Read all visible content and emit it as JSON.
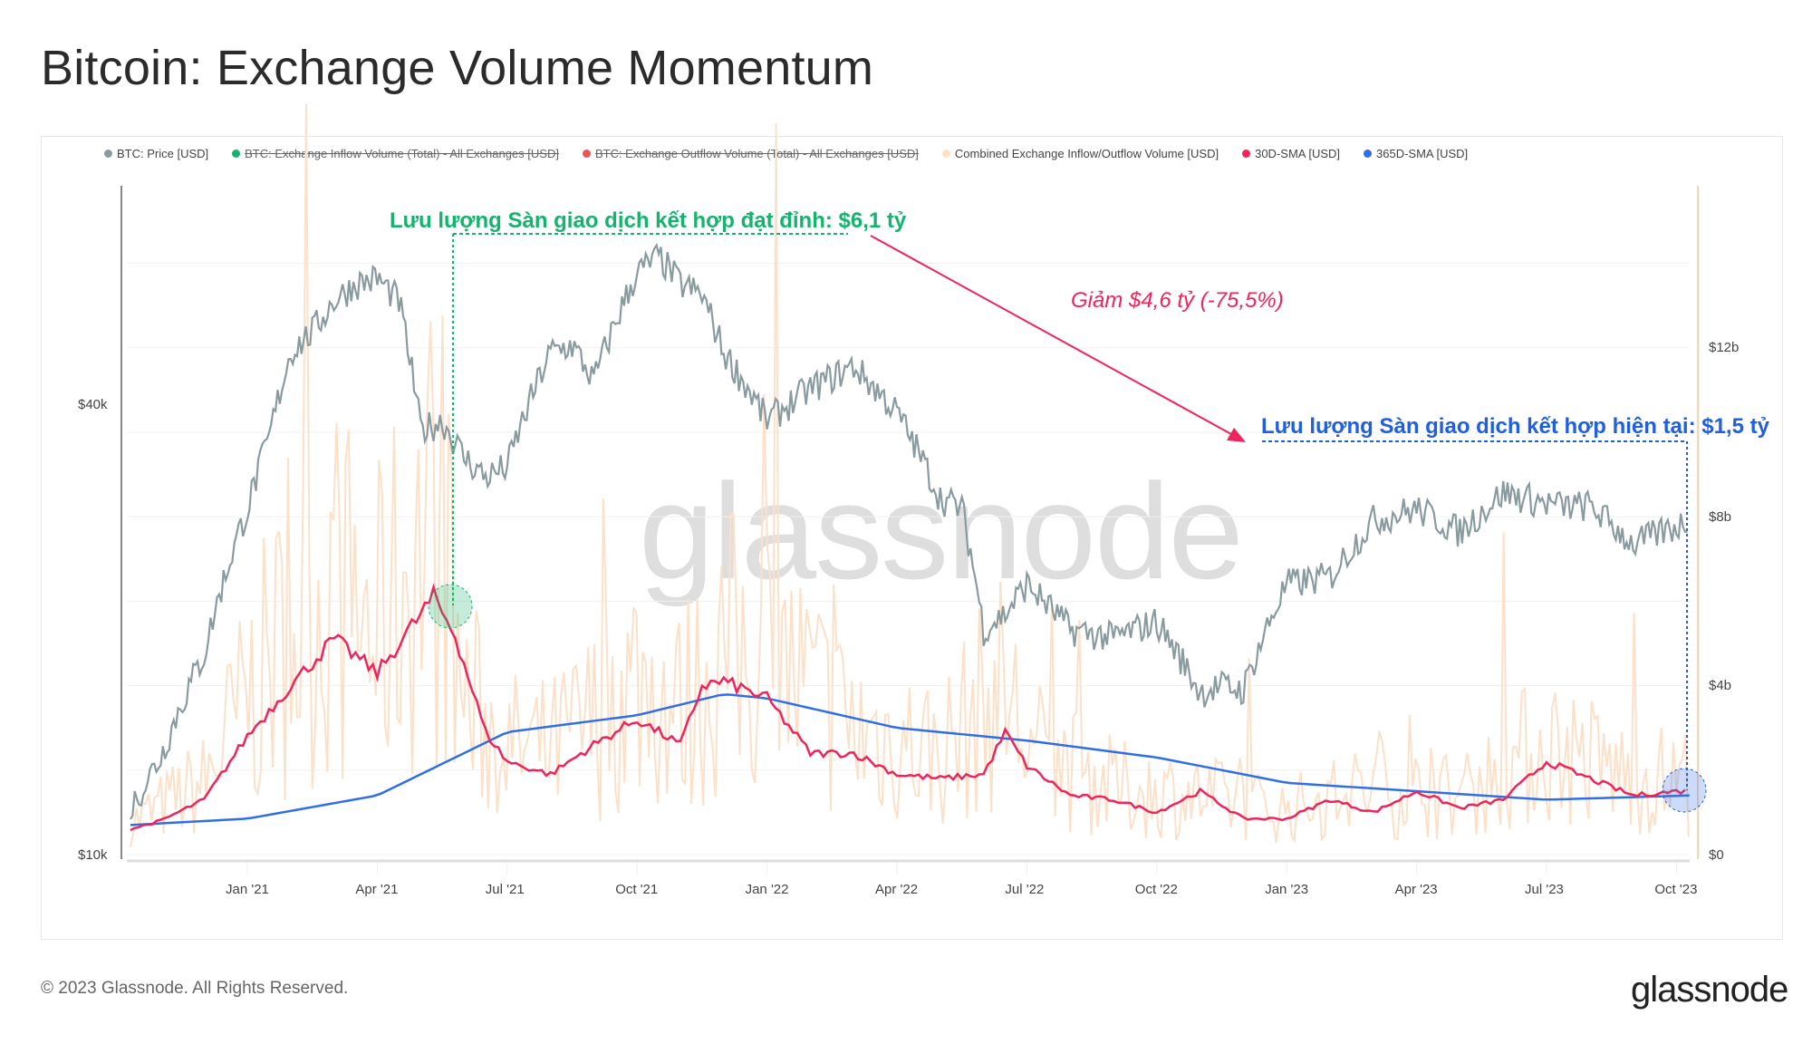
{
  "title": "Bitcoin: Exchange Volume Momentum",
  "footer": "© 2023 Glassnode. All Rights Reserved.",
  "logo": "glassnode",
  "watermark": "glassnode",
  "legend": [
    {
      "label": "BTC: Price [USD]",
      "color": "#8a9ba0",
      "struck": false
    },
    {
      "label": "BTC: Exchange Inflow Volume (Total) - All Exchanges [USD]",
      "color": "#16b36e",
      "struck": true
    },
    {
      "label": "BTC: Exchange Outflow Volume (Total) - All Exchanges [USD]",
      "color": "#ef5350",
      "struck": true
    },
    {
      "label": "Combined Exchange Inflow/Outflow Volume [USD]",
      "color": "#fde0c8",
      "struck": false
    },
    {
      "label": "30D-SMA [USD]",
      "color": "#f0245a",
      "struck": false
    },
    {
      "label": "365D-SMA [USD]",
      "color": "#2f6fe6",
      "struck": false
    }
  ],
  "annotations": {
    "peak": "Lưu lượng Sàn giao dịch kết hợp đạt đỉnh: $6,1 tỷ",
    "drop": "Giảm $4,6 tỷ (-75,5%)",
    "current": "Lưu lượng Sàn giao dịch kết hợp hiện tại: $1,5 tỷ"
  },
  "chart_data": {
    "type": "line",
    "title": "Bitcoin: Exchange Volume Momentum",
    "x_ticks": [
      "Jan '21",
      "Apr '21",
      "Jul '21",
      "Oct '21",
      "Jan '22",
      "Apr '22",
      "Jul '22",
      "Oct '22",
      "Jan '23",
      "Apr '23",
      "Jul '23",
      "Oct '23"
    ],
    "y_left": {
      "scale": "log",
      "ticks": [
        "$10k",
        "$40k"
      ],
      "tick_values": [
        10000,
        40000
      ],
      "range": [
        10000,
        70000
      ]
    },
    "y_right": {
      "scale": "linear",
      "ticks": [
        "$0",
        "$4b",
        "$8b",
        "$12b"
      ],
      "tick_values": [
        0,
        4,
        8,
        12
      ],
      "range": [
        0,
        16
      ]
    },
    "x_unit": "months since Jan 2021",
    "series": [
      {
        "name": "BTC: Price [USD]",
        "axis": "left",
        "color": "#8a9ba0",
        "t": [
          -2.7,
          -2,
          -1,
          0,
          0.5,
          1,
          1.5,
          2,
          2.5,
          3,
          3.5,
          4,
          4.5,
          5,
          5.5,
          6,
          6.5,
          7,
          7.5,
          8,
          9,
          9.5,
          10,
          10.5,
          11,
          12,
          13,
          14,
          15,
          16,
          16.5,
          17,
          17.5,
          18,
          19,
          20,
          21,
          22,
          22.5,
          23,
          24,
          25,
          26,
          26.5,
          27,
          28,
          29,
          30,
          30.5,
          31,
          32,
          33,
          33.3
        ],
        "values": [
          11500,
          13500,
          18500,
          29000,
          36000,
          47000,
          50000,
          55000,
          58000,
          59000,
          55000,
          37000,
          38000,
          34000,
          32000,
          33000,
          40000,
          47000,
          48000,
          43000,
          60000,
          63000,
          58000,
          56000,
          47000,
          38000,
          42000,
          45000,
          39000,
          30000,
          29000,
          20000,
          21000,
          23000,
          20000,
          19500,
          20500,
          16500,
          16800,
          16600,
          23000,
          23500,
          28000,
          28500,
          29000,
          27000,
          30500,
          29500,
          29200,
          29300,
          26000,
          27500,
          28000
        ]
      },
      {
        "name": "30D-SMA [USD]",
        "axis": "right",
        "unit": "billion USD",
        "color": "#f0245a",
        "t": [
          -2.7,
          -2,
          -1,
          0,
          1,
          2,
          3,
          4.3,
          4.8,
          5.5,
          6,
          7,
          8,
          9,
          10,
          10.5,
          11,
          12,
          13,
          14,
          15,
          16,
          17,
          17.5,
          18,
          19,
          20,
          21,
          22,
          23,
          24,
          25,
          26,
          27,
          28,
          29,
          30,
          31,
          32,
          33,
          33.3
        ],
        "values": [
          0.6,
          0.8,
          1.3,
          2.8,
          4.0,
          5.1,
          4.3,
          6.1,
          5.2,
          2.9,
          2.2,
          1.9,
          2.6,
          3.2,
          2.6,
          4.0,
          4.1,
          3.7,
          2.4,
          2.4,
          1.9,
          1.8,
          1.9,
          2.9,
          2.1,
          1.4,
          1.3,
          1.0,
          1.5,
          0.85,
          0.85,
          1.3,
          1.0,
          1.5,
          1.1,
          1.3,
          2.2,
          1.8,
          1.4,
          1.5,
          1.5
        ]
      },
      {
        "name": "365D-SMA [USD]",
        "axis": "right",
        "unit": "billion USD",
        "color": "#2f6fe6",
        "t": [
          -2.7,
          0,
          3,
          6,
          9,
          11,
          12,
          15,
          18,
          21,
          24,
          27,
          30,
          33.3
        ],
        "values": [
          0.7,
          0.85,
          1.4,
          2.9,
          3.3,
          3.8,
          3.7,
          3.0,
          2.7,
          2.3,
          1.7,
          1.5,
          1.3,
          1.4
        ]
      },
      {
        "name": "Combined Exchange Inflow/Outflow Volume [USD]",
        "axis": "right",
        "unit": "billion USD",
        "color": "#fde0c8",
        "t": [
          -2.7,
          -1,
          0,
          1,
          2,
          3,
          4.3,
          5,
          6,
          7,
          8,
          9,
          10,
          11,
          12,
          14,
          16,
          17.5,
          18,
          20,
          22,
          24,
          26,
          28,
          30,
          32,
          33.3
        ],
        "values": [
          0.7,
          1.6,
          3.5,
          5.0,
          6.0,
          5.0,
          7.5,
          3.5,
          2.4,
          2.3,
          3.0,
          4.0,
          3.2,
          4.5,
          4.5,
          2.8,
          2.3,
          3.8,
          2.4,
          1.5,
          1.3,
          1.0,
          1.5,
          1.3,
          2.5,
          1.7,
          1.7
        ]
      }
    ],
    "grid": true,
    "legend_position": "top"
  }
}
